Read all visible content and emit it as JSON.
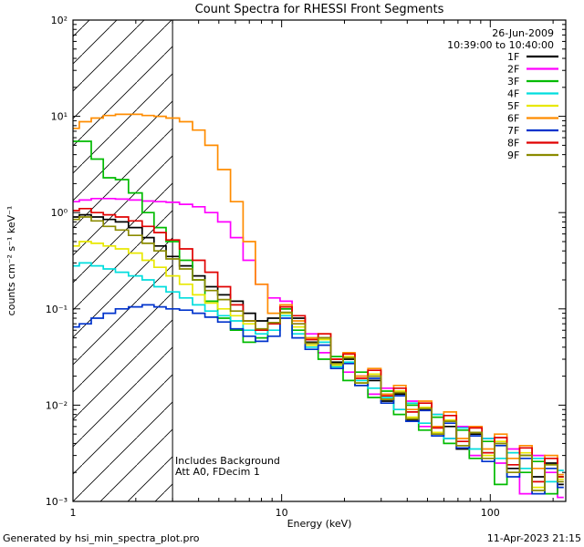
{
  "header": {
    "date": "26-Jun-2009",
    "time_range": "10:39:00 to 10:40:00"
  },
  "annotations": {
    "background": "Includes Background",
    "attenuation": "Att A0, FDecim 1"
  },
  "footer": {
    "generator": "Generated by hsi_min_spectra_plot.pro",
    "timestamp": "11-Apr-2023 21:15",
    "timestamp_color": "#007f7f"
  },
  "chart_data": {
    "type": "line",
    "title": "Count Spectra for RHESSI Front Segments",
    "step_mode": true,
    "legend_position": "top-right",
    "grid": false,
    "excluded_region": {
      "from": 1,
      "to": 3,
      "style": "hatched"
    },
    "x_axis": {
      "label": "Energy (keV)",
      "scale": "log",
      "range": [
        1,
        230
      ],
      "ticks": [
        {
          "value": 1,
          "label": "1"
        },
        {
          "value": 10,
          "label": "10"
        },
        {
          "value": 100,
          "label": "100"
        }
      ]
    },
    "y_axis": {
      "label": "counts cm⁻² s⁻¹ keV⁻¹",
      "scale": "log",
      "range": [
        0.001,
        100
      ],
      "ticks": [
        {
          "value": 0.001,
          "label": "10⁻³"
        },
        {
          "value": 0.01,
          "label": "10⁻²"
        },
        {
          "value": 0.1,
          "label": "10⁻¹"
        },
        {
          "value": 1,
          "label": "10⁰"
        },
        {
          "value": 10,
          "label": "10¹"
        },
        {
          "value": 100,
          "label": "10²"
        }
      ]
    },
    "x": [
      1.0,
      1.15,
      1.3,
      1.5,
      1.7,
      2.0,
      2.3,
      2.6,
      3.0,
      3.5,
      4.0,
      4.6,
      5.3,
      6.1,
      7.0,
      8.0,
      9.2,
      10.5,
      12,
      14,
      16,
      18.5,
      21,
      24,
      28,
      32,
      37,
      42,
      49,
      56,
      64,
      74,
      85,
      98,
      112,
      129,
      148,
      170,
      196,
      225
    ],
    "series": [
      {
        "name": "1F",
        "color": "#000000",
        "values": [
          0.9,
          0.95,
          0.9,
          0.85,
          0.8,
          0.7,
          0.55,
          0.45,
          0.35,
          0.28,
          0.22,
          0.17,
          0.14,
          0.12,
          0.09,
          0.075,
          0.08,
          0.1,
          0.08,
          0.045,
          0.05,
          0.028,
          0.03,
          0.016,
          0.018,
          0.011,
          0.013,
          0.007,
          0.009,
          0.005,
          0.006,
          0.0035,
          0.005,
          0.0032,
          0.004,
          0.0022,
          0.003,
          0.0018,
          0.0025,
          0.0015
        ]
      },
      {
        "name": "2F",
        "color": "#ff00ff",
        "values": [
          1.3,
          1.35,
          1.4,
          1.4,
          1.38,
          1.35,
          1.32,
          1.3,
          1.28,
          1.22,
          1.15,
          1.0,
          0.8,
          0.55,
          0.32,
          0.18,
          0.13,
          0.12,
          0.07,
          0.055,
          0.035,
          0.03,
          0.022,
          0.02,
          0.013,
          0.015,
          0.009,
          0.011,
          0.006,
          0.008,
          0.0045,
          0.006,
          0.003,
          0.0045,
          0.0025,
          0.0035,
          0.0012,
          0.003,
          0.002,
          0.0011
        ]
      },
      {
        "name": "3F",
        "color": "#00bb00",
        "values": [
          5.5,
          5.5,
          3.6,
          2.3,
          2.2,
          1.6,
          1.0,
          0.7,
          0.5,
          0.32,
          0.2,
          0.12,
          0.08,
          0.06,
          0.045,
          0.05,
          0.07,
          0.1,
          0.06,
          0.05,
          0.03,
          0.032,
          0.018,
          0.022,
          0.012,
          0.014,
          0.008,
          0.01,
          0.0055,
          0.0075,
          0.004,
          0.0055,
          0.0028,
          0.0042,
          0.0015,
          0.0032,
          0.002,
          0.0026,
          0.0012,
          0.0018
        ]
      },
      {
        "name": "4F",
        "color": "#00dddd",
        "values": [
          0.28,
          0.3,
          0.28,
          0.26,
          0.24,
          0.22,
          0.2,
          0.17,
          0.15,
          0.13,
          0.11,
          0.095,
          0.085,
          0.075,
          0.06,
          0.055,
          0.06,
          0.085,
          0.055,
          0.04,
          0.045,
          0.025,
          0.028,
          0.018,
          0.015,
          0.012,
          0.009,
          0.0105,
          0.0065,
          0.008,
          0.0045,
          0.0058,
          0.0035,
          0.0045,
          0.0028,
          0.0032,
          0.0022,
          0.0028,
          0.0016,
          0.0021
        ]
      },
      {
        "name": "5F",
        "color": "#e8e800",
        "values": [
          0.45,
          0.5,
          0.48,
          0.45,
          0.42,
          0.38,
          0.32,
          0.27,
          0.22,
          0.18,
          0.14,
          0.115,
          0.1,
          0.085,
          0.07,
          0.06,
          0.07,
          0.09,
          0.065,
          0.042,
          0.048,
          0.026,
          0.032,
          0.017,
          0.021,
          0.0115,
          0.014,
          0.0075,
          0.0095,
          0.0052,
          0.007,
          0.0038,
          0.0052,
          0.003,
          0.0042,
          0.002,
          0.0032,
          0.0014,
          0.0024,
          0.0017
        ]
      },
      {
        "name": "6F",
        "color": "#ff8c00",
        "values": [
          7.5,
          8.8,
          9.6,
          10.2,
          10.5,
          10.5,
          10.2,
          10.0,
          9.6,
          8.8,
          7.2,
          5.0,
          2.8,
          1.3,
          0.5,
          0.18,
          0.09,
          0.11,
          0.075,
          0.05,
          0.055,
          0.03,
          0.035,
          0.02,
          0.024,
          0.013,
          0.016,
          0.009,
          0.011,
          0.006,
          0.0085,
          0.0045,
          0.006,
          0.0035,
          0.005,
          0.0028,
          0.0038,
          0.0022,
          0.003,
          0.0019
        ]
      },
      {
        "name": "7F",
        "color": "#0033cc",
        "values": [
          0.065,
          0.07,
          0.08,
          0.09,
          0.1,
          0.105,
          0.11,
          0.105,
          0.1,
          0.097,
          0.09,
          0.082,
          0.073,
          0.062,
          0.052,
          0.046,
          0.052,
          0.08,
          0.05,
          0.038,
          0.042,
          0.024,
          0.027,
          0.016,
          0.019,
          0.0105,
          0.0125,
          0.0068,
          0.0088,
          0.0048,
          0.0065,
          0.0036,
          0.0048,
          0.0026,
          0.0038,
          0.0018,
          0.0028,
          0.0012,
          0.0022,
          0.0014
        ]
      },
      {
        "name": "8F",
        "color": "#e00000",
        "values": [
          1.05,
          1.1,
          1.0,
          0.95,
          0.9,
          0.82,
          0.72,
          0.62,
          0.52,
          0.42,
          0.32,
          0.24,
          0.17,
          0.11,
          0.075,
          0.06,
          0.07,
          0.105,
          0.085,
          0.048,
          0.055,
          0.03,
          0.034,
          0.019,
          0.023,
          0.0125,
          0.015,
          0.0085,
          0.0105,
          0.0058,
          0.0078,
          0.0042,
          0.0058,
          0.0032,
          0.0046,
          0.0024,
          0.0036,
          0.0016,
          0.0028,
          0.0018
        ]
      },
      {
        "name": "9F",
        "color": "#8b8b00",
        "values": [
          0.85,
          0.9,
          0.82,
          0.72,
          0.66,
          0.58,
          0.48,
          0.4,
          0.33,
          0.26,
          0.2,
          0.155,
          0.125,
          0.095,
          0.075,
          0.062,
          0.072,
          0.092,
          0.07,
          0.044,
          0.05,
          0.027,
          0.031,
          0.017,
          0.02,
          0.0115,
          0.0135,
          0.0072,
          0.0092,
          0.005,
          0.0068,
          0.0038,
          0.0052,
          0.0028,
          0.004,
          0.002,
          0.003,
          0.0013,
          0.0024,
          0.0016
        ]
      }
    ]
  }
}
